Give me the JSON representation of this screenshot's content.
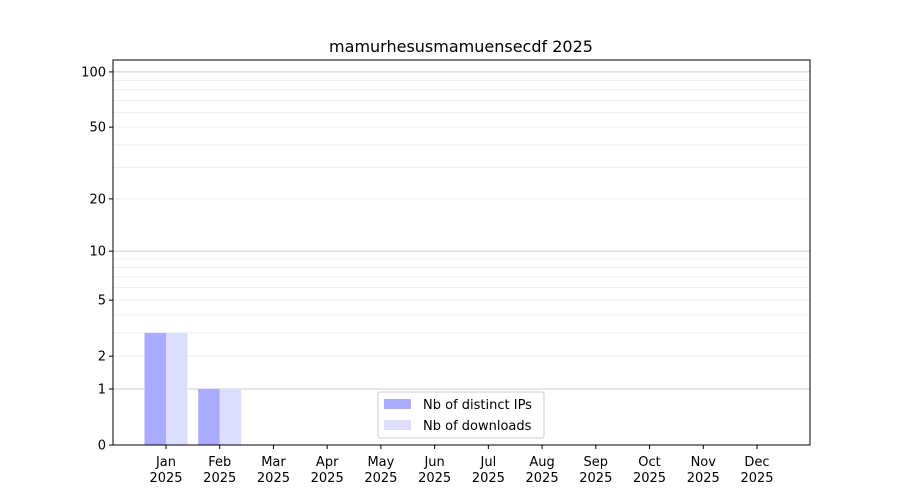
{
  "chart_data": {
    "type": "bar",
    "title": "mamurhesusmamuensecdf 2025",
    "xlabel": "",
    "ylabel": "",
    "yscale": "log(1+y)",
    "ylim": [
      0,
      116
    ],
    "yticks": [
      0,
      1,
      2,
      5,
      10,
      20,
      50,
      100
    ],
    "yminor": [
      3,
      4,
      6,
      7,
      8,
      9,
      30,
      40,
      60,
      70,
      80,
      90
    ],
    "grid": true,
    "legend_position": "lower-center",
    "categories": [
      "Jan\n2025",
      "Feb\n2025",
      "Mar\n2025",
      "Apr\n2025",
      "May\n2025",
      "Jun\n2025",
      "Jul\n2025",
      "Aug\n2025",
      "Sep\n2025",
      "Oct\n2025",
      "Nov\n2025",
      "Dec\n2025"
    ],
    "series": [
      {
        "name": "Nb of distinct IPs",
        "color": "#aaaaff",
        "values": [
          3,
          1,
          0,
          0,
          0,
          0,
          0,
          0,
          0,
          0,
          0,
          0
        ]
      },
      {
        "name": "Nb of downloads",
        "color": "#ddddff",
        "values": [
          3,
          1,
          0,
          0,
          0,
          0,
          0,
          0,
          0,
          0,
          0,
          0
        ]
      }
    ]
  }
}
